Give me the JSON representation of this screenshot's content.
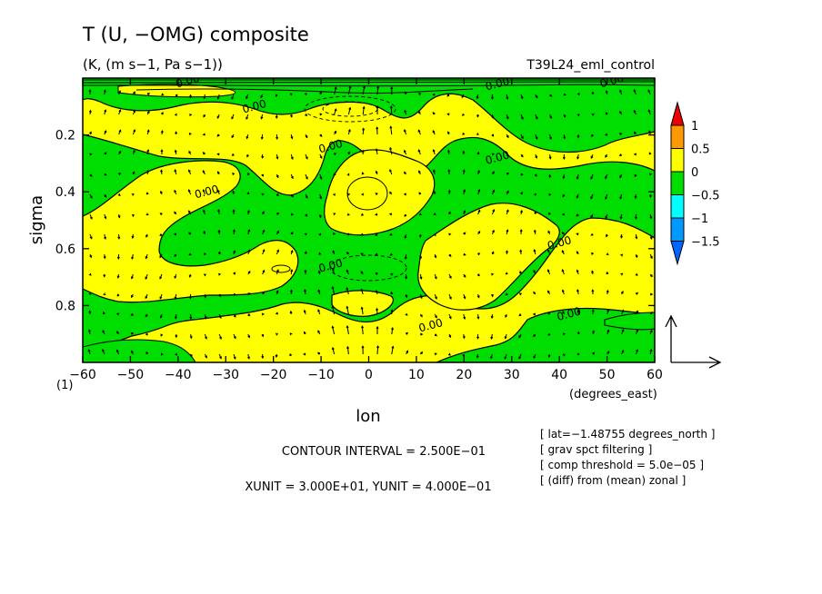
{
  "title": "T (U, −OMG) composite",
  "subtitle": "(K, (m s−1, Pa s−1))",
  "run_name": "T39L24_eml_control",
  "corner_label": "(1)",
  "contour_interval_text": "CONTOUR INTERVAL = 2.500E−01",
  "unit_text": "XUNIT = 3.000E+01, YUNIT = 4.000E−01",
  "info_lines": [
    "[ lat=−1.48755 degrees_north ]",
    "[ grav spct filtering ]",
    "[ comp threshold = 5.0e−05 ]",
    "[ (diff) from (mean) zonal ]"
  ],
  "colors": {
    "level_1_5_plus": "#ee0000",
    "level_1_0": "#ff9900",
    "level_0_5": "#ffff00",
    "level_0": "#00dd00",
    "level_neg0_5": "#00ffff",
    "level_neg1": "#0099ff",
    "level_neg1_5_minus": "#0066ff"
  },
  "chart_data": {
    "type": "heatmap",
    "xlabel": "lon",
    "xunit_label": "(degrees_east)",
    "ylabel": "sigma",
    "xlim": [
      -60,
      60
    ],
    "ylim": [
      1.0,
      0.0
    ],
    "xticks": [
      -60,
      -50,
      -40,
      -30,
      -20,
      -10,
      0,
      10,
      20,
      30,
      40,
      50,
      60
    ],
    "xtick_labels": [
      "−60",
      "−50",
      "−40",
      "−30",
      "−20",
      "−10",
      "0",
      "10",
      "20",
      "30",
      "40",
      "50",
      "60"
    ],
    "yticks": [
      0.2,
      0.4,
      0.6,
      0.8
    ],
    "ytick_labels": [
      "0.2",
      "0.4",
      "0.6",
      "0.8"
    ],
    "contour_interval": 0.25,
    "contour_labels": [
      {
        "text": "0.00",
        "lon": -38,
        "sigma": 0.01
      },
      {
        "text": "0.00",
        "lon": -24,
        "sigma": 0.1
      },
      {
        "text": "0.00",
        "lon": -8,
        "sigma": 0.24
      },
      {
        "text": "0.00",
        "lon": 27,
        "sigma": 0.02
      },
      {
        "text": "0.00",
        "lon": 27,
        "sigma": 0.28
      },
      {
        "text": "0.00",
        "lon": 51,
        "sigma": 0.01
      },
      {
        "text": "0.00",
        "lon": -34,
        "sigma": 0.4
      },
      {
        "text": "0.00",
        "lon": 40,
        "sigma": 0.58
      },
      {
        "text": "0.00",
        "lon": -8,
        "sigma": 0.66
      },
      {
        "text": "0.00",
        "lon": 13,
        "sigma": 0.87
      },
      {
        "text": "0.00",
        "lon": 42,
        "sigma": 0.83
      }
    ],
    "colorbar": {
      "levels": [
        "1",
        "0.5",
        "0",
        "−0.5",
        "−1",
        "−1.5"
      ],
      "bands": [
        {
          "from": 1.0,
          "to": 1.5,
          "color": "#ff9900"
        },
        {
          "from": 0.5,
          "to": 1.0,
          "color": "#ff9900"
        },
        {
          "from": 0.0,
          "to": 0.5,
          "color": "#ffff00"
        },
        {
          "from": -0.5,
          "to": 0.0,
          "color": "#00dd00"
        },
        {
          "from": -1.0,
          "to": -0.5,
          "color": "#00ffff"
        },
        {
          "from": -1.5,
          "to": -1.0,
          "color": "#0099ff"
        }
      ]
    }
  }
}
